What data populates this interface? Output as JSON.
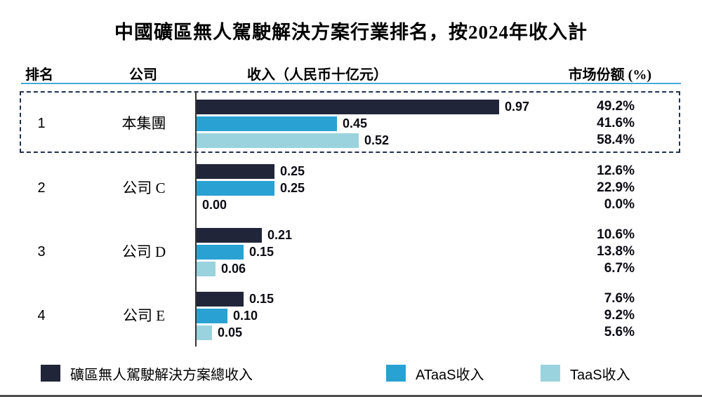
{
  "chart_data": {
    "type": "bar",
    "orientation": "horizontal",
    "title": "中國礦區無人駕駛解決方案行業排名，按2024年收入計",
    "value_unit": "人民币十亿元",
    "xlim": [
      0,
      1.0
    ],
    "grid": false,
    "legend_position": "bottom",
    "series": [
      {
        "name": "礦區無人駕駛解決方案總收入",
        "color": "#212539"
      },
      {
        "name": "ATaaS收入",
        "color": "#29a2d3"
      },
      {
        "name": "TaaS收入",
        "color": "#9ad3de"
      }
    ],
    "rows": [
      {
        "rank": "1",
        "company": "本集團",
        "highlighted": true,
        "values": [
          0.97,
          0.45,
          0.52
        ],
        "labels": [
          "0.97",
          "0.45",
          "0.52"
        ],
        "shares": [
          "49.2%",
          "41.6%",
          "58.4%"
        ]
      },
      {
        "rank": "2",
        "company": "公司 C",
        "highlighted": false,
        "values": [
          0.25,
          0.25,
          0.0
        ],
        "labels": [
          "0.25",
          "0.25",
          "0.00"
        ],
        "shares": [
          "12.6%",
          "22.9%",
          "0.0%"
        ]
      },
      {
        "rank": "3",
        "company": "公司 D",
        "highlighted": false,
        "values": [
          0.21,
          0.15,
          0.06
        ],
        "labels": [
          "0.21",
          "0.15",
          "0.06"
        ],
        "shares": [
          "10.6%",
          "13.8%",
          "6.7%"
        ]
      },
      {
        "rank": "4",
        "company": "公司 E",
        "highlighted": false,
        "values": [
          0.15,
          0.1,
          0.05
        ],
        "labels": [
          "0.15",
          "0.10",
          "0.05"
        ],
        "shares": [
          "7.6%",
          "9.2%",
          "5.6%"
        ]
      }
    ]
  },
  "table_header": {
    "rank": "排名",
    "company": "公司",
    "revenue": "收入（人民币十亿元）",
    "market_share": "市场份额 (%)"
  },
  "decor": {
    "header_rule": "#45a9dc",
    "box_dash": "#1f3050",
    "axis": "#333333",
    "bottom_rule": "#4f4f4f"
  }
}
